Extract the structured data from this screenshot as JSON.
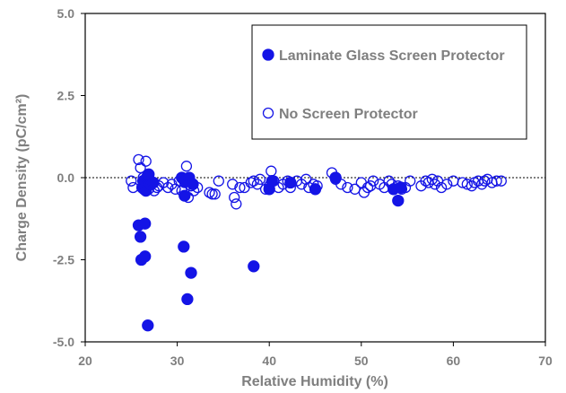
{
  "chart_data": {
    "type": "scatter",
    "title": "",
    "xlabel": "Relative Humidity (%)",
    "ylabel": "Charge Density (pC/cm²)",
    "xlim": [
      20,
      70
    ],
    "ylim": [
      -5.0,
      5.0
    ],
    "xticks": [
      "20",
      "30",
      "40",
      "50",
      "60",
      "70"
    ],
    "yticks": [
      "5.0",
      "2.5",
      "0.0",
      "-2.5",
      "-5.0"
    ],
    "xtick_values": [
      20,
      30,
      40,
      50,
      60,
      70
    ],
    "ytick_values": [
      5.0,
      2.5,
      0.0,
      -2.5,
      -5.0
    ],
    "reference_line_y": 0.0,
    "grid": false,
    "legend_position": "top-right",
    "series": [
      {
        "name": "No Screen Protector",
        "marker": "open-circle",
        "color": "#1414e6",
        "points": [
          [
            25.0,
            -0.1
          ],
          [
            25.2,
            -0.3
          ],
          [
            25.8,
            0.55
          ],
          [
            26.0,
            0.3
          ],
          [
            26.3,
            0.0
          ],
          [
            26.6,
            0.5
          ],
          [
            26.8,
            0.1
          ],
          [
            26.9,
            -0.35
          ],
          [
            27.2,
            -0.2
          ],
          [
            27.5,
            -0.4
          ],
          [
            27.8,
            -0.3
          ],
          [
            28.0,
            -0.25
          ],
          [
            28.5,
            -0.15
          ],
          [
            29.0,
            -0.3
          ],
          [
            29.4,
            -0.2
          ],
          [
            29.8,
            -0.35
          ],
          [
            30.2,
            -0.1
          ],
          [
            30.5,
            -0.4
          ],
          [
            30.8,
            -0.15
          ],
          [
            31.0,
            0.35
          ],
          [
            31.2,
            -0.6
          ],
          [
            31.5,
            -0.25
          ],
          [
            31.8,
            -0.4
          ],
          [
            32.2,
            -0.3
          ],
          [
            33.5,
            -0.45
          ],
          [
            33.8,
            -0.5
          ],
          [
            34.1,
            -0.5
          ],
          [
            34.5,
            -0.1
          ],
          [
            36.0,
            -0.2
          ],
          [
            36.2,
            -0.6
          ],
          [
            36.4,
            -0.8
          ],
          [
            36.8,
            -0.3
          ],
          [
            37.3,
            -0.3
          ],
          [
            38.0,
            -0.15
          ],
          [
            38.3,
            -0.1
          ],
          [
            38.7,
            -0.2
          ],
          [
            39.0,
            -0.05
          ],
          [
            39.6,
            -0.35
          ],
          [
            40.0,
            -0.25
          ],
          [
            40.2,
            0.2
          ],
          [
            40.5,
            -0.1
          ],
          [
            41.0,
            -0.3
          ],
          [
            41.5,
            -0.2
          ],
          [
            42.0,
            -0.1
          ],
          [
            42.3,
            -0.3
          ],
          [
            43.0,
            -0.1
          ],
          [
            43.5,
            -0.2
          ],
          [
            44.0,
            -0.05
          ],
          [
            44.3,
            -0.3
          ],
          [
            44.8,
            -0.2
          ],
          [
            45.2,
            -0.25
          ],
          [
            46.8,
            0.15
          ],
          [
            47.2,
            -0.05
          ],
          [
            47.8,
            -0.2
          ],
          [
            48.5,
            -0.3
          ],
          [
            49.3,
            -0.35
          ],
          [
            50.0,
            -0.15
          ],
          [
            50.3,
            -0.45
          ],
          [
            50.7,
            -0.3
          ],
          [
            51.0,
            -0.25
          ],
          [
            51.3,
            -0.1
          ],
          [
            52.0,
            -0.2
          ],
          [
            52.5,
            -0.3
          ],
          [
            53.0,
            -0.1
          ],
          [
            53.3,
            -0.2
          ],
          [
            54.0,
            -0.25
          ],
          [
            54.4,
            -0.35
          ],
          [
            54.8,
            -0.3
          ],
          [
            55.3,
            -0.1
          ],
          [
            56.5,
            -0.25
          ],
          [
            57.0,
            -0.1
          ],
          [
            57.3,
            -0.15
          ],
          [
            57.7,
            -0.05
          ],
          [
            58.0,
            -0.2
          ],
          [
            58.3,
            -0.1
          ],
          [
            58.7,
            -0.3
          ],
          [
            59.3,
            -0.2
          ],
          [
            60.0,
            -0.1
          ],
          [
            61.0,
            -0.15
          ],
          [
            61.5,
            -0.2
          ],
          [
            62.0,
            -0.25
          ],
          [
            62.3,
            -0.15
          ],
          [
            62.7,
            -0.1
          ],
          [
            63.1,
            -0.2
          ],
          [
            63.4,
            -0.1
          ],
          [
            63.7,
            -0.05
          ],
          [
            64.2,
            -0.15
          ],
          [
            64.7,
            -0.1
          ],
          [
            65.2,
            -0.1
          ]
        ]
      },
      {
        "name": "Laminate Glass Screen Protector",
        "marker": "filled-circle",
        "color": "#1414e6",
        "points": [
          [
            25.8,
            -1.45
          ],
          [
            26.0,
            -1.8
          ],
          [
            26.1,
            -2.5
          ],
          [
            26.2,
            -0.3
          ],
          [
            26.3,
            -0.1
          ],
          [
            26.4,
            -0.35
          ],
          [
            26.5,
            -2.4
          ],
          [
            26.5,
            -1.4
          ],
          [
            26.6,
            -0.4
          ],
          [
            26.7,
            0.0
          ],
          [
            26.8,
            -4.5
          ],
          [
            26.9,
            0.1
          ],
          [
            27.1,
            -0.2
          ],
          [
            27.4,
            -0.15
          ],
          [
            30.5,
            0.0
          ],
          [
            30.7,
            -2.1
          ],
          [
            30.8,
            -0.55
          ],
          [
            30.9,
            -0.1
          ],
          [
            31.1,
            -3.7
          ],
          [
            31.3,
            0.0
          ],
          [
            31.5,
            -2.9
          ],
          [
            31.7,
            -0.2
          ],
          [
            38.3,
            -2.7
          ],
          [
            40.0,
            -0.35
          ],
          [
            40.3,
            -0.1
          ],
          [
            42.3,
            -0.15
          ],
          [
            45.0,
            -0.35
          ],
          [
            47.2,
            0.0
          ],
          [
            53.5,
            -0.35
          ],
          [
            54.0,
            -0.7
          ],
          [
            54.3,
            -0.3
          ]
        ]
      }
    ]
  }
}
